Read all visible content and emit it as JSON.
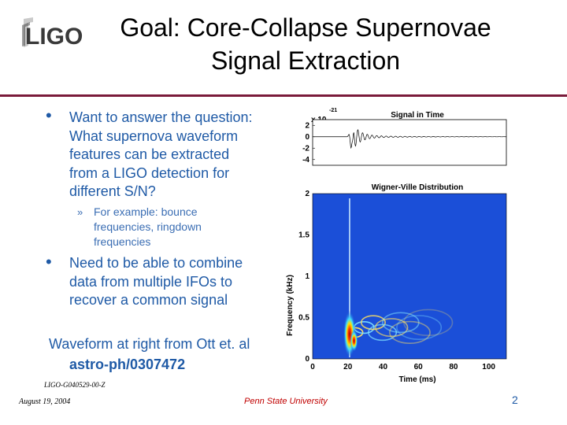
{
  "header": {
    "logo_text": "LIGO",
    "title_line1": "Goal: Core-Collapse Supernovae",
    "title_line2": "Signal Extraction"
  },
  "body": {
    "bullets": [
      {
        "lines": [
          "Want to answer the question:",
          "What supernova waveform",
          "features can be extracted",
          "from a LIGO detection for",
          "different S/N?"
        ]
      },
      {
        "lines": [
          "Need to be able to combine",
          "data from multiple IFOs to",
          "recover a common signal"
        ]
      }
    ],
    "sub_bullet": {
      "marker": "»",
      "lines": [
        "For example: bounce",
        "frequencies, ringdown",
        "frequencies"
      ]
    },
    "bullet_marker": "•",
    "credit_text": "Waveform at right from Ott et. al",
    "credit_ref": "astro-ph/0307472"
  },
  "footer": {
    "doc_id": "LIGO-G040529-00-Z",
    "date": "August 19, 2004",
    "institution": "Penn State University",
    "page_number": "2"
  },
  "chart_data": [
    {
      "type": "line",
      "title": "Signal in Time",
      "y_multiplier_label": "x 10",
      "y_multiplier_exponent": "-21",
      "y_ticks": [
        "2",
        "0",
        "-2",
        "-4"
      ],
      "ylim": [
        -5,
        3
      ],
      "description_shape": "damped oscillation burst near x≈20 ms"
    },
    {
      "type": "heatmap",
      "title": "Wigner-Ville Distribution",
      "xlabel": "Time (ms)",
      "ylabel": "Frequency (kHz)",
      "x_ticks": [
        "0",
        "20",
        "40",
        "60",
        "80",
        "100"
      ],
      "y_ticks": [
        "0",
        "0.5",
        "1",
        "1.5",
        "2"
      ],
      "xlim": [
        0,
        110
      ],
      "ylim": [
        0,
        2
      ]
    }
  ],
  "colors": {
    "title_rule": "#7a1a3a",
    "text_blue": "#1f5aa6",
    "footer_red": "#c00000",
    "heatmap_bg": "#1b4fd8"
  }
}
